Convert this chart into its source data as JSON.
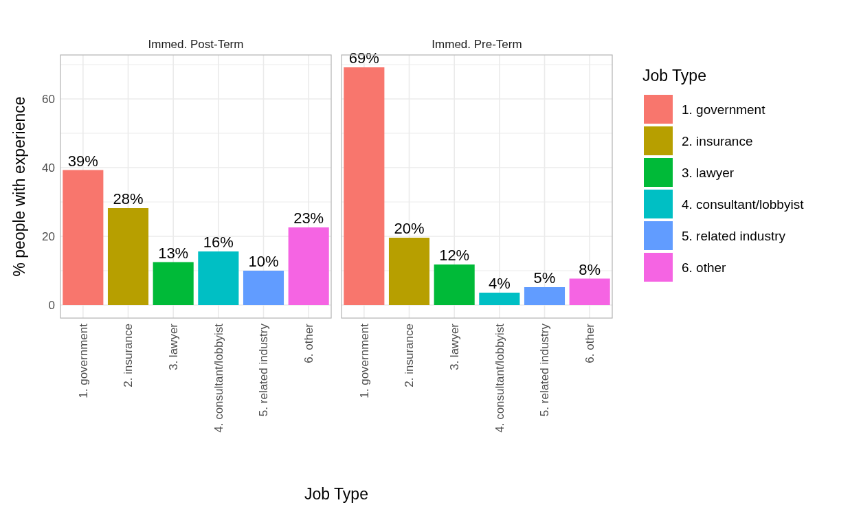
{
  "chart_data": [
    {
      "type": "bar",
      "title": "Immed. Post-Term",
      "xlabel": "Job Type",
      "ylabel": "% people with experience",
      "categories": [
        "1. government",
        "2. insurance",
        "3. lawyer",
        "4. consultant/lobbyist",
        "5. related industry",
        "6. other"
      ],
      "series": [
        {
          "color": "#f8766d",
          "values": [
            39.3,
            null,
            null,
            null,
            null,
            null
          ],
          "value_labels": [
            "39%",
            null,
            null,
            null,
            null,
            null
          ]
        },
        {
          "color": "#b79f00",
          "values": [
            null,
            28.2,
            null,
            null,
            null,
            null
          ],
          "value_labels": [
            null,
            "28%",
            null,
            null,
            null,
            null
          ]
        },
        {
          "color": "#00ba38",
          "values": [
            null,
            null,
            12.5,
            null,
            null,
            null
          ],
          "value_labels": [
            null,
            null,
            "13%",
            null,
            null,
            null
          ]
        },
        {
          "color": "#00bfc4",
          "values": [
            null,
            null,
            null,
            15.6,
            null,
            null
          ],
          "value_labels": [
            null,
            null,
            null,
            "16%",
            null,
            null
          ]
        },
        {
          "color": "#619cff",
          "values": [
            null,
            null,
            null,
            null,
            10,
            null
          ],
          "value_labels": [
            null,
            null,
            null,
            null,
            "10%",
            null
          ]
        },
        {
          "color": "#f564e3",
          "values": [
            null,
            null,
            null,
            null,
            null,
            22.6
          ],
          "value_labels": [
            null,
            null,
            null,
            null,
            null,
            "23%"
          ]
        }
      ],
      "ylim": [
        -3.8,
        72.8
      ],
      "yticks": [
        0,
        {
          "value": 10,
          "label": null
        },
        20,
        {
          "value": 30,
          "label": null
        },
        40,
        {
          "value": 50,
          "label": null
        },
        60,
        {
          "value": 70,
          "label": null
        }
      ],
      "grid": true
    },
    {
      "type": "bar",
      "title": "Immed. Pre-Term",
      "legend_title": "Job Type",
      "legend": "right",
      "tick_labels": "x",
      "categories": [
        "1. government",
        "2. insurance",
        "3. lawyer",
        "4. consultant/lobbyist",
        "5. related industry",
        "6. other"
      ],
      "series": [
        {
          "name": "1. government",
          "color": "#f8766d",
          "values": [
            69.2,
            null,
            null,
            null,
            null,
            null
          ],
          "value_labels": [
            "69%",
            null,
            null,
            null,
            null,
            null
          ]
        },
        {
          "name": "2. insurance",
          "color": "#b79f00",
          "values": [
            null,
            19.6,
            null,
            null,
            null,
            null
          ],
          "value_labels": [
            null,
            "20%",
            null,
            null,
            null,
            null
          ]
        },
        {
          "name": "3. lawyer",
          "color": "#00ba38",
          "values": [
            null,
            null,
            11.8,
            null,
            null,
            null
          ],
          "value_labels": [
            null,
            null,
            "12%",
            null,
            null,
            null
          ]
        },
        {
          "name": "4. consultant/lobbyist",
          "color": "#00bfc4",
          "values": [
            null,
            null,
            null,
            3.6,
            null,
            null
          ],
          "value_labels": [
            null,
            null,
            null,
            "4%",
            null,
            null
          ]
        },
        {
          "name": "5. related industry",
          "color": "#619cff",
          "values": [
            null,
            null,
            null,
            null,
            5.2,
            null
          ],
          "value_labels": [
            null,
            null,
            null,
            null,
            "5%",
            null
          ]
        },
        {
          "name": "6. other",
          "color": "#f564e3",
          "values": [
            null,
            null,
            null,
            null,
            null,
            7.7
          ],
          "value_labels": [
            null,
            null,
            null,
            null,
            null,
            "8%"
          ]
        }
      ],
      "ylim": [
        -3.8,
        72.8
      ],
      "yticks": [
        0,
        {
          "value": 10,
          "label": null
        },
        20,
        {
          "value": 30,
          "label": null
        },
        40,
        {
          "value": 50,
          "label": null
        },
        60,
        {
          "value": 70,
          "label": null
        }
      ],
      "grid": true
    }
  ]
}
